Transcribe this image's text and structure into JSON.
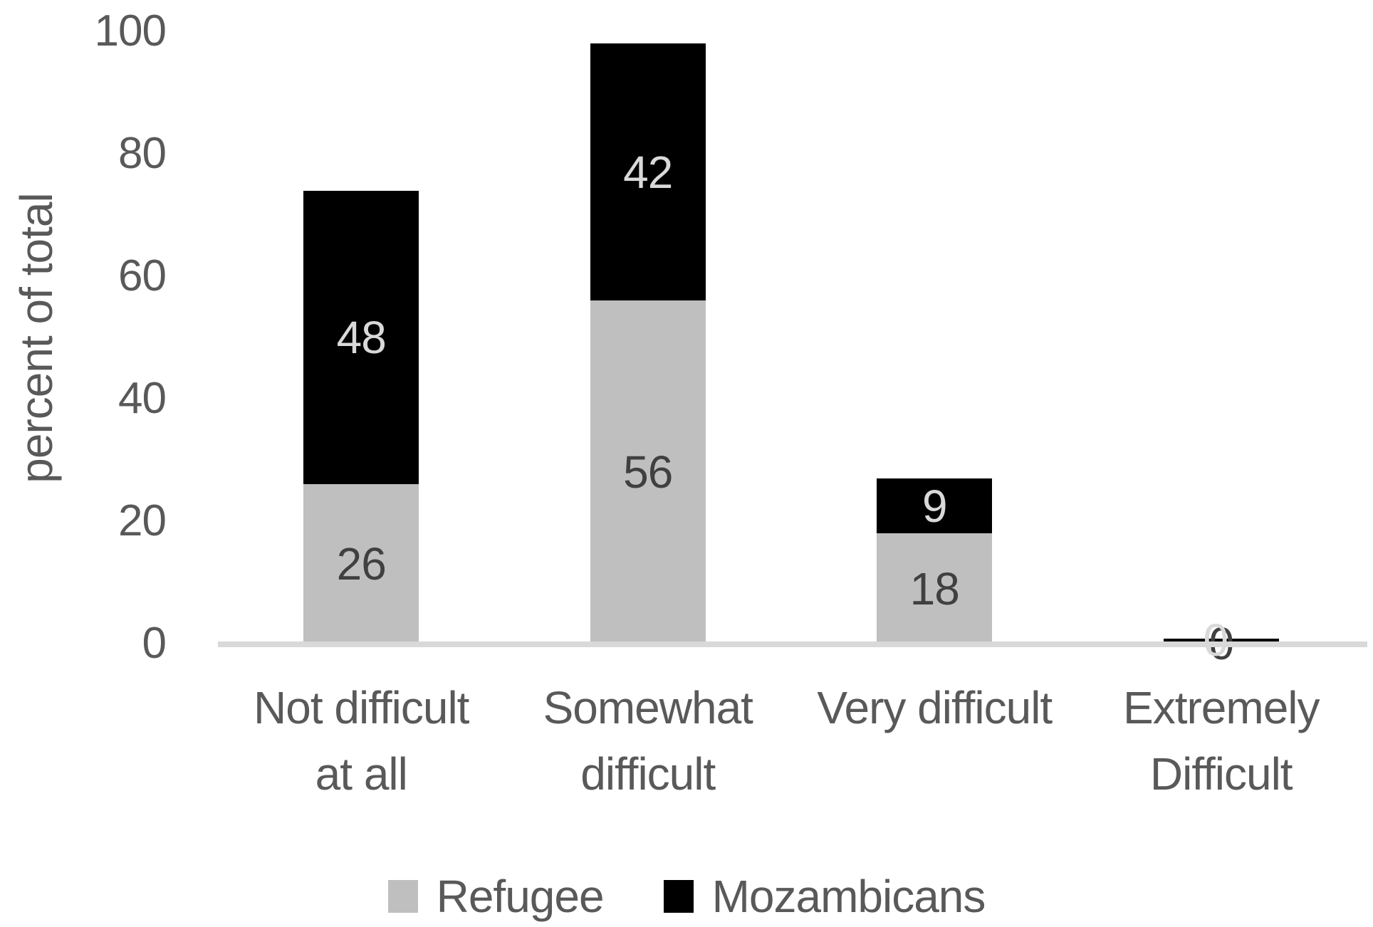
{
  "page": {
    "background": "#ffffff"
  },
  "chart_data": {
    "type": "bar",
    "stacked": true,
    "title": "",
    "ylabel": "percent of total",
    "xlabel": "",
    "ylim": [
      0,
      100
    ],
    "yticks": [
      0,
      20,
      40,
      60,
      80,
      100
    ],
    "grid": false,
    "categories": [
      "Not difficult\nat all",
      "Somewhat\ndifficult",
      "Very difficult",
      "Extremely\nDifficult"
    ],
    "series": [
      {
        "name": "Refugee",
        "color": "#bfbfbf",
        "label_color": "#404040",
        "values": [
          26,
          56,
          18,
          0
        ]
      },
      {
        "name": "Mozambicans",
        "color": "#000000",
        "label_color": "#d9d9d9",
        "values": [
          48,
          42,
          9,
          0
        ]
      }
    ],
    "legend": {
      "position": "bottom",
      "entries": [
        "Refugee",
        "Mozambicans"
      ]
    },
    "axis_line_color": "#d9d9d9",
    "text_color": "#595959"
  }
}
